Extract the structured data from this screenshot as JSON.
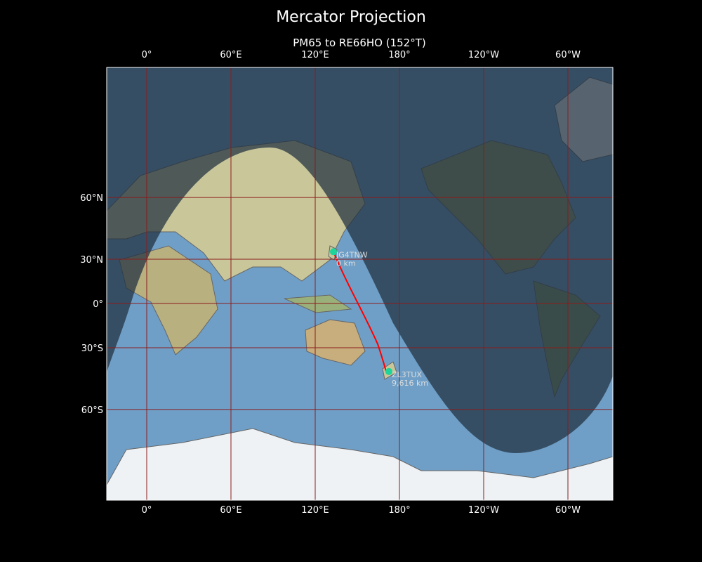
{
  "title": "Mercator Projection",
  "subtitle": "PM65 to RE66HO (152°T)",
  "lon_ticks": [
    "0°",
    "60°E",
    "120°E",
    "180°",
    "120°W",
    "60°W"
  ],
  "lat_ticks": [
    "60°N",
    "30°N",
    "0°",
    "30°S",
    "60°S"
  ],
  "stations": [
    {
      "call": "JG4TNW",
      "distance": "0 km",
      "lon": 133,
      "lat": 34.5
    },
    {
      "call": "ZL3TUX",
      "distance": "9,616 km",
      "lon": 172.5,
      "lat": -43.5
    }
  ],
  "colors": {
    "path": "#ff0000",
    "marker": "#1ed49a",
    "ocean": "#6a9cc4",
    "night": "#2b3d4e",
    "grid": "#8b1c1c"
  }
}
